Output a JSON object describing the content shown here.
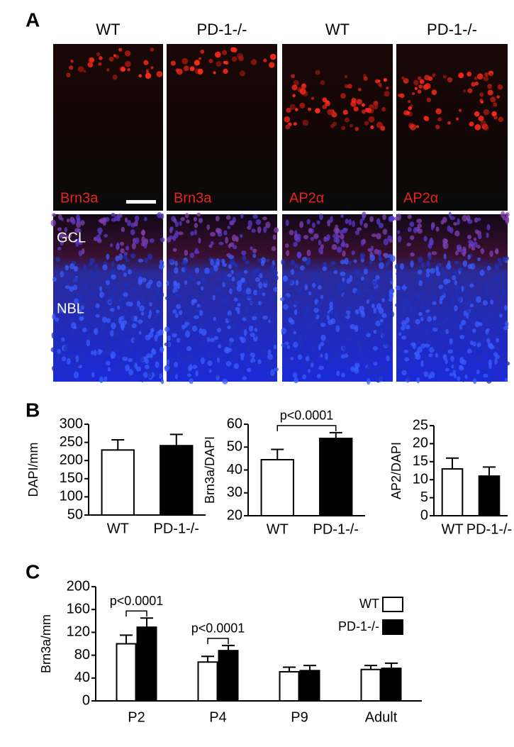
{
  "panel_labels": [
    "A",
    "B",
    "C"
  ],
  "panel_a": {
    "columns": [
      "WT",
      "PD-1-/-",
      "WT",
      "PD-1-/-"
    ],
    "stain_labels": [
      "Brn3a",
      "Brn3a",
      "AP2α",
      "AP2α"
    ],
    "layer_labels": [
      "GCL",
      "NBL"
    ]
  },
  "chart_data": [
    {
      "type": "bar",
      "ylabel": "DAPI/mm",
      "categories": [
        "WT",
        "PD-1-/-"
      ],
      "values": [
        229,
        241
      ],
      "errors": [
        28,
        31
      ],
      "colors": [
        "#ffffff",
        "#000000"
      ],
      "ylim": [
        50,
        300
      ],
      "yticks": [
        50,
        100,
        150,
        200,
        250,
        300
      ]
    },
    {
      "type": "bar",
      "ylabel": "Brn3a/DAPI",
      "categories": [
        "WT",
        "PD-1-/-"
      ],
      "values": [
        44.5,
        53.8
      ],
      "errors": [
        4.5,
        2.5
      ],
      "colors": [
        "#ffffff",
        "#000000"
      ],
      "ylim": [
        20,
        60
      ],
      "yticks": [
        20,
        30,
        40,
        50,
        60
      ],
      "annotations": [
        "p<0.0001"
      ]
    },
    {
      "type": "bar",
      "ylabel": "AP2/DAPI",
      "categories": [
        "WT",
        "PD-1-/-"
      ],
      "values": [
        13,
        11
      ],
      "errors": [
        3,
        2.5
      ],
      "colors": [
        "#ffffff",
        "#000000"
      ],
      "ylim": [
        0,
        25
      ],
      "yticks": [
        0,
        5,
        10,
        15,
        20,
        25
      ]
    },
    {
      "type": "grouped-bar",
      "ylabel": "Brn3a/mm",
      "categories": [
        "P2",
        "P4",
        "P9",
        "Adult"
      ],
      "series": [
        {
          "name": "WT",
          "color": "#ffffff",
          "values": [
            100,
            68,
            51,
            55
          ],
          "errors": [
            15,
            10,
            8,
            7
          ]
        },
        {
          "name": "PD-1-/-",
          "color": "#000000",
          "values": [
            129,
            88,
            53,
            57
          ],
          "errors": [
            16,
            9,
            9,
            9
          ]
        }
      ],
      "ylim": [
        0,
        200
      ],
      "yticks": [
        0,
        40,
        80,
        120,
        160,
        200
      ],
      "legend": "upper right",
      "annotations": [
        "p<0.0001",
        "p<0.0001"
      ]
    }
  ]
}
